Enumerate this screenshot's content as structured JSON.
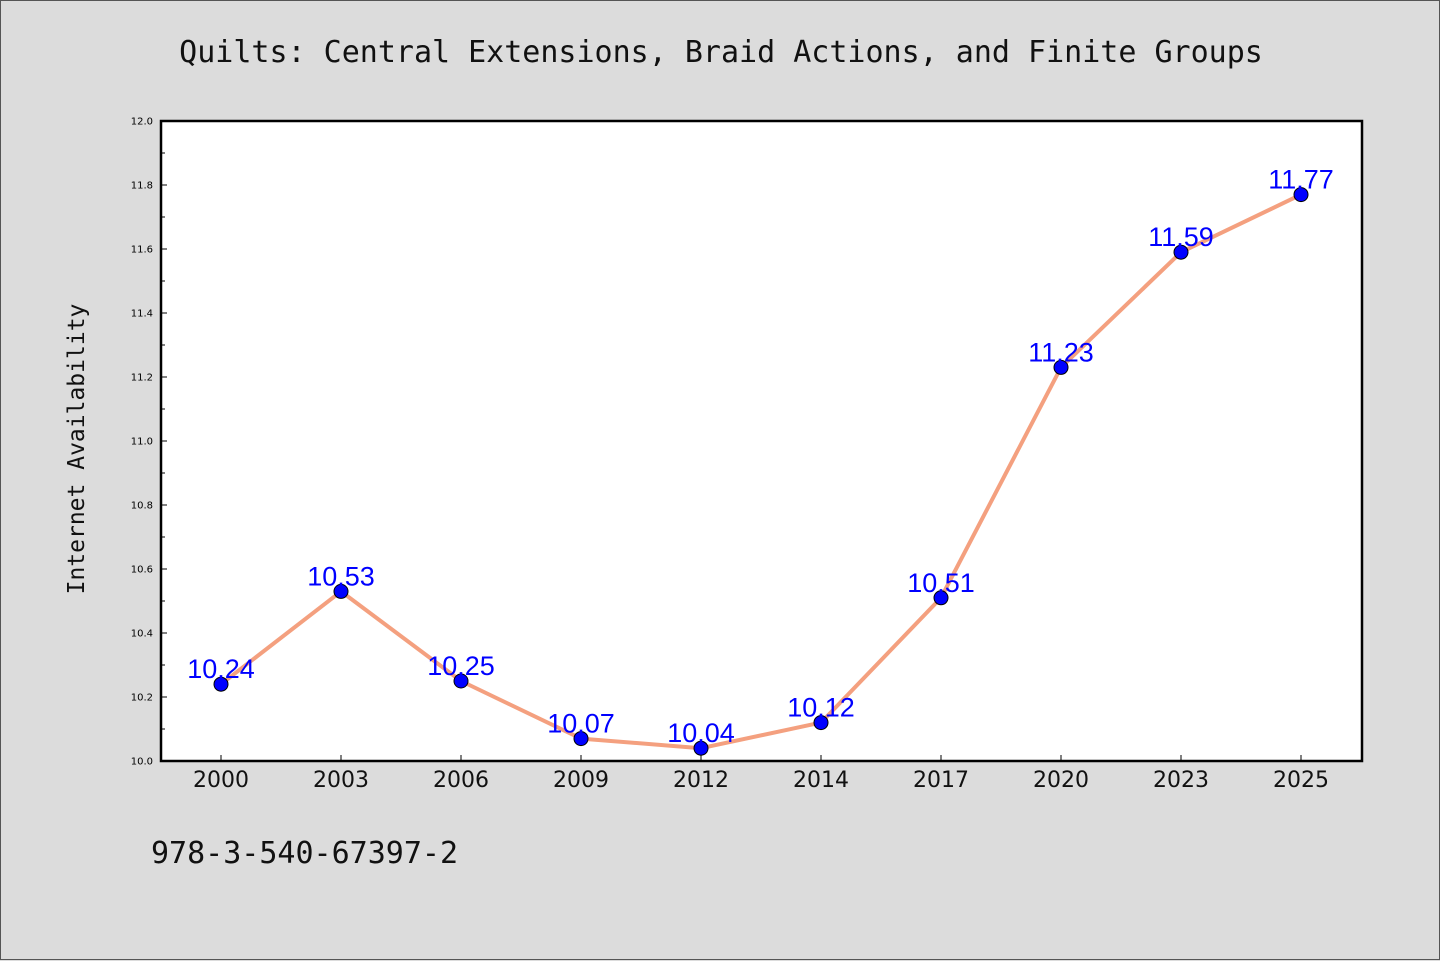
{
  "header": {
    "title": "Quilts: Central Extensions, Braid Actions, and Finite Groups"
  },
  "footer": {
    "isbn": "978-3-540-67397-2"
  },
  "colors": {
    "line": "#f4a07f",
    "marker": "#0000ff",
    "label": "#0000ff",
    "background": "#dcdcdc",
    "plot_area": "#ffffff"
  },
  "chart_data": {
    "type": "line",
    "title": "Quilts: Central Extensions, Braid Actions, and Finite Groups",
    "xlabel": "",
    "ylabel": "Internet Availability",
    "categories": [
      "2000",
      "2003",
      "2006",
      "2009",
      "2012",
      "2014",
      "2017",
      "2020",
      "2023",
      "2025"
    ],
    "series": [
      {
        "values": [
          10.24,
          10.53,
          10.25,
          10.07,
          10.04,
          10.12,
          10.51,
          11.23,
          11.59,
          11.77
        ]
      }
    ],
    "data_labels": [
      "10.24",
      "10.53",
      "10.25",
      "10.07",
      "10.04",
      "10.12",
      "10.51",
      "11.23",
      "11.59",
      "11.77"
    ],
    "ylim": [
      10.0,
      12.0
    ],
    "yticks": [
      "10.0",
      "10.2",
      "10.4",
      "10.6",
      "10.8",
      "11.0",
      "11.2",
      "11.4",
      "11.6",
      "11.8",
      "12.0"
    ],
    "grid": false,
    "legend": "none"
  }
}
